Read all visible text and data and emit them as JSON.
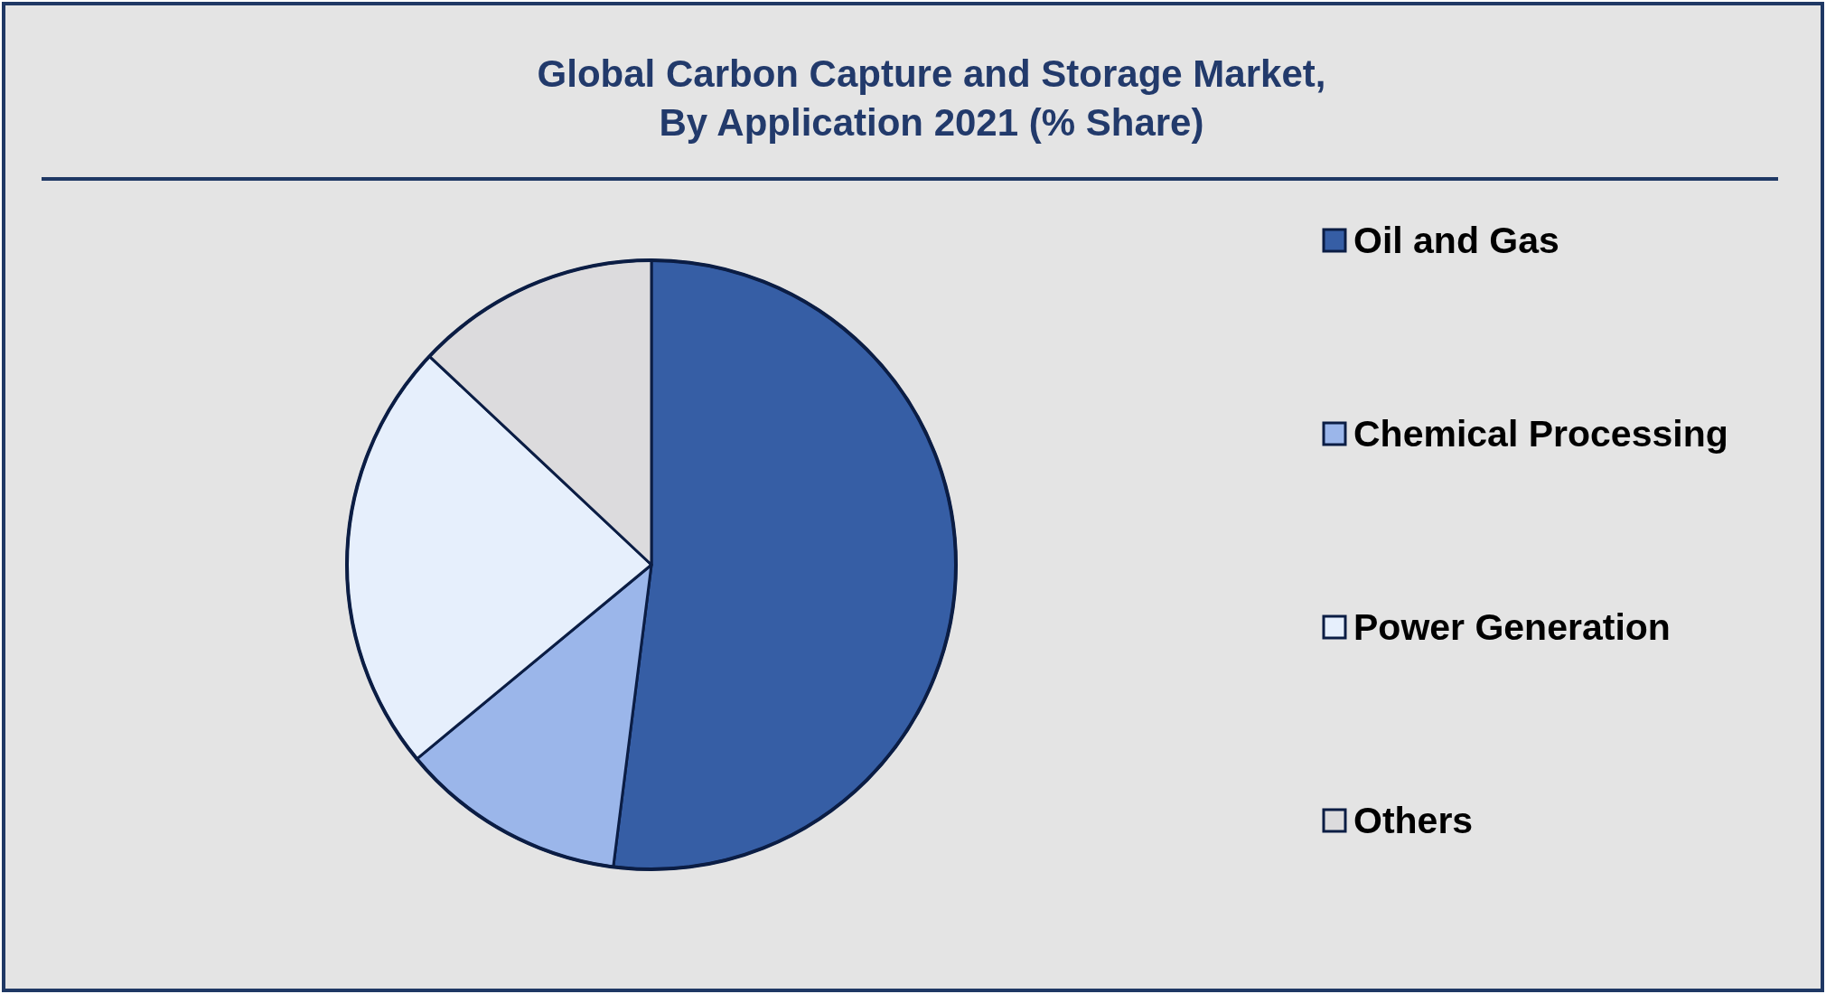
{
  "chart_data": {
    "type": "pie",
    "title": "Global Carbon Capture and Storage Market,\nBy Application 2021 (% Share)",
    "categories": [
      "Oil and Gas",
      "Chemical Processing",
      "Power Generation",
      "Others"
    ],
    "values": [
      52,
      12,
      23,
      13
    ],
    "colors": [
      "#365ea5",
      "#9bb6ea",
      "#e6effc",
      "#dcdbdd"
    ],
    "legend": "right"
  }
}
